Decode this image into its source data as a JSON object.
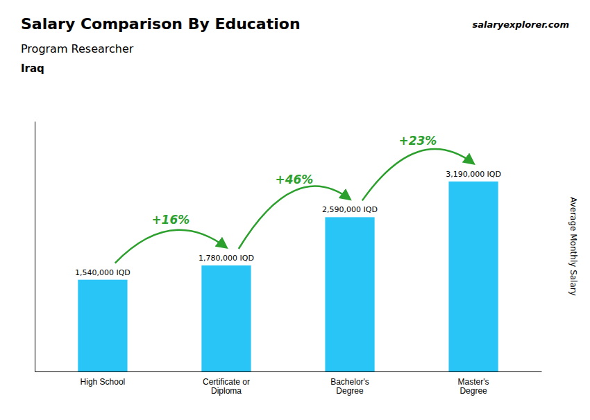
{
  "chart_data": {
    "type": "bar",
    "title": "Salary Comparison By Education",
    "subtitle": "Program Researcher",
    "country": "Iraq",
    "source": "salaryexplorer.com",
    "categories": [
      "High School",
      "Certificate or\nDiploma",
      "Bachelor's\nDegree",
      "Master's\nDegree"
    ],
    "values": [
      1540000,
      1780000,
      2590000,
      3190000
    ],
    "value_labels": [
      "1,540,000 IQD",
      "1,780,000 IQD",
      "2,590,000 IQD",
      "3,190,000 IQD"
    ],
    "data_labels": true,
    "annotations": [
      "+16%",
      "+46%",
      "+23%"
    ],
    "ylabel": "Average Monthly Salary",
    "ylim": [
      0,
      4200000
    ],
    "color": "#29c5f6",
    "grid": false,
    "tick_labels": "x"
  }
}
